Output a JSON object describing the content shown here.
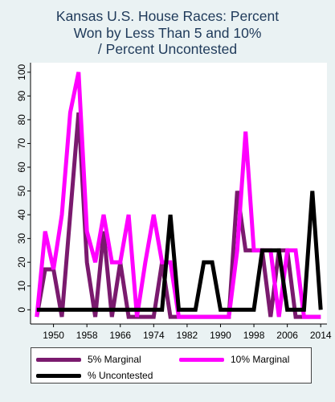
{
  "chart_data": {
    "type": "line",
    "title_lines": [
      "Kansas U.S. House Races: Percent",
      "Won by Less Than 5 and 10%",
      "/ Percent Uncontested"
    ],
    "xlabel": "",
    "ylabel": "",
    "x_ticks": [
      1950,
      1958,
      1966,
      1974,
      1982,
      1990,
      1998,
      2006,
      2014
    ],
    "y_ticks": [
      0,
      10,
      20,
      30,
      40,
      50,
      60,
      70,
      80,
      90,
      100
    ],
    "xlim": [
      1944.5,
      2015.5
    ],
    "ylim": [
      -6,
      104
    ],
    "grid": false,
    "legend_position": "bottom",
    "x": [
      1946,
      1948,
      1950,
      1952,
      1954,
      1956,
      1958,
      1960,
      1962,
      1964,
      1966,
      1968,
      1970,
      1972,
      1974,
      1976,
      1978,
      1980,
      1982,
      1984,
      1986,
      1988,
      1990,
      1992,
      1994,
      1996,
      1998,
      2000,
      2002,
      2004,
      2006,
      2008,
      2010,
      2012,
      2014
    ],
    "series": [
      {
        "name": "5% Marginal",
        "color": "#7a1a6e",
        "values": [
          -3,
          17,
          17,
          -3,
          40,
          83,
          20,
          -3,
          33,
          -3,
          20,
          -3,
          -3,
          -3,
          -3,
          20,
          -3,
          -3,
          -3,
          -3,
          -3,
          -3,
          -3,
          -3,
          50,
          25,
          25,
          25,
          -3,
          25,
          25,
          -3,
          -3,
          -3,
          -3
        ]
      },
      {
        "name": "10% Marginal",
        "color": "#ff00ff",
        "values": [
          -3,
          33,
          17,
          40,
          83,
          100,
          33,
          20,
          40,
          20,
          20,
          40,
          -3,
          20,
          40,
          20,
          20,
          -3,
          -3,
          -3,
          -3,
          -3,
          -3,
          -3,
          25,
          75,
          25,
          25,
          25,
          -3,
          25,
          25,
          -3,
          -3,
          -3
        ]
      },
      {
        "name": "% Uncontested",
        "color": "#000000",
        "values": [
          0,
          0,
          0,
          0,
          0,
          0,
          0,
          0,
          0,
          0,
          0,
          0,
          0,
          0,
          0,
          0,
          40,
          0,
          0,
          0,
          20,
          20,
          0,
          0,
          0,
          0,
          0,
          25,
          25,
          25,
          0,
          0,
          0,
          50,
          0
        ]
      }
    ]
  }
}
